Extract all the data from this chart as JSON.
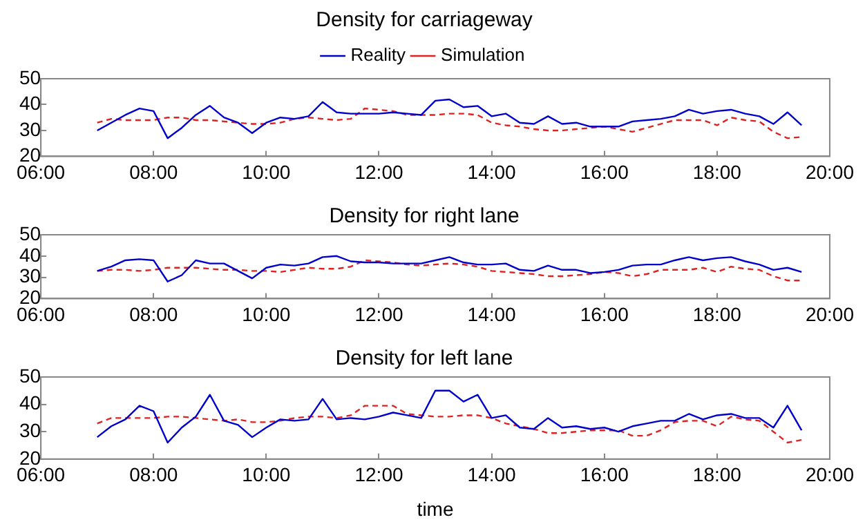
{
  "chart_data": [
    {
      "type": "line",
      "title": "Density for carriageway",
      "legend": "top",
      "grid": false,
      "xlim": [
        6,
        20
      ],
      "ylim": [
        20,
        50
      ],
      "yticks": [
        20,
        30,
        40,
        50
      ],
      "xticks": [
        {
          "value": 6,
          "label": "06:00"
        },
        {
          "value": 8,
          "label": "08:00"
        },
        {
          "value": 10,
          "label": "10:00"
        },
        {
          "value": 12,
          "label": "12:00"
        },
        {
          "value": 14,
          "label": "14:00"
        },
        {
          "value": 16,
          "label": "16:00"
        },
        {
          "value": 18,
          "label": "18:00"
        },
        {
          "value": 20,
          "label": "20:00"
        }
      ],
      "x": [
        7,
        7.25,
        7.5,
        7.75,
        8,
        8.25,
        8.5,
        8.75,
        9,
        9.25,
        9.5,
        9.75,
        10,
        10.25,
        10.5,
        10.75,
        11,
        11.25,
        11.5,
        11.75,
        12,
        12.25,
        12.5,
        12.75,
        13,
        13.25,
        13.5,
        13.75,
        14,
        14.25,
        14.5,
        14.75,
        15,
        15.25,
        15.5,
        15.75,
        16,
        16.25,
        16.5,
        16.75,
        17,
        17.25,
        17.5,
        17.75,
        18,
        18.25,
        18.5,
        18.75,
        19,
        19.25,
        19.5
      ],
      "series": [
        {
          "name": "Reality",
          "color": "#0000cc",
          "line_style": "solid",
          "values": [
            30,
            33,
            36,
            38.5,
            37.5,
            27,
            31,
            36,
            39.5,
            35,
            33,
            29,
            33,
            35,
            34.5,
            35.5,
            41,
            37,
            36.5,
            36.5,
            36.5,
            37,
            36.5,
            36,
            41.5,
            42,
            39,
            39.5,
            35.5,
            36.5,
            33,
            32.5,
            35.5,
            32.5,
            33,
            31.5,
            31.5,
            31.5,
            33.5,
            34,
            34.5,
            35.5,
            38,
            36.5,
            37.5,
            38,
            36.5,
            35.5,
            32.5,
            37,
            32
          ]
        },
        {
          "name": "Simulation",
          "color": "#dd2222",
          "line_style": "dashed",
          "values": [
            33,
            34.5,
            34,
            34,
            34,
            35,
            35,
            34,
            34,
            33.5,
            33,
            32.5,
            32.5,
            33,
            34.5,
            35,
            34.5,
            34,
            34.5,
            38.5,
            38,
            37.5,
            36,
            36,
            36,
            36.5,
            36.5,
            36,
            33,
            32,
            31.5,
            30.5,
            30,
            30,
            30.5,
            31,
            31.5,
            30.5,
            29.5,
            31,
            32.5,
            34,
            34,
            34,
            32,
            35,
            34,
            33.5,
            29.5,
            27,
            27.5
          ]
        }
      ]
    },
    {
      "type": "line",
      "title": "Density for right lane",
      "grid": false,
      "xlim": [
        6,
        20
      ],
      "ylim": [
        20,
        50
      ],
      "yticks": [
        20,
        30,
        40,
        50
      ],
      "xticks": [
        {
          "value": 6,
          "label": "06:00"
        },
        {
          "value": 8,
          "label": "08:00"
        },
        {
          "value": 10,
          "label": "10:00"
        },
        {
          "value": 12,
          "label": "12:00"
        },
        {
          "value": 14,
          "label": "14:00"
        },
        {
          "value": 16,
          "label": "16:00"
        },
        {
          "value": 18,
          "label": "18:00"
        },
        {
          "value": 20,
          "label": "20:00"
        }
      ],
      "x": [
        7,
        7.25,
        7.5,
        7.75,
        8,
        8.25,
        8.5,
        8.75,
        9,
        9.25,
        9.5,
        9.75,
        10,
        10.25,
        10.5,
        10.75,
        11,
        11.25,
        11.5,
        11.75,
        12,
        12.25,
        12.5,
        12.75,
        13,
        13.25,
        13.5,
        13.75,
        14,
        14.25,
        14.5,
        14.75,
        15,
        15.25,
        15.5,
        15.75,
        16,
        16.25,
        16.5,
        16.75,
        17,
        17.25,
        17.5,
        17.75,
        18,
        18.25,
        18.5,
        18.75,
        19,
        19.25,
        19.5
      ],
      "series": [
        {
          "color": "#0000cc",
          "line_style": "solid",
          "values": [
            33,
            35,
            38,
            38.5,
            38,
            28,
            31,
            38,
            36.5,
            36.5,
            33,
            29.5,
            34.5,
            36,
            35.5,
            36.5,
            39.5,
            40,
            37.5,
            37,
            37,
            36.5,
            36.5,
            36.5,
            38,
            39.5,
            37,
            36,
            36,
            36.5,
            33.5,
            33,
            35.5,
            33.5,
            33.5,
            32,
            32.5,
            33.5,
            35.5,
            36,
            36,
            38,
            39.5,
            38,
            39,
            39.5,
            37.5,
            36,
            33.5,
            34.5,
            32.5
          ]
        },
        {
          "color": "#dd2222",
          "line_style": "dashed",
          "values": [
            33,
            33.5,
            33.5,
            33,
            33.5,
            34.5,
            34.5,
            34.5,
            34,
            33.5,
            33.5,
            33,
            33,
            32.5,
            33.5,
            34.5,
            34,
            34,
            35,
            38,
            37.5,
            37,
            36,
            35.5,
            36,
            36.5,
            36,
            35,
            33,
            32.5,
            32,
            31.5,
            30.5,
            30.5,
            31,
            31.5,
            32.5,
            32,
            30.5,
            31.5,
            33.5,
            33.5,
            33.5,
            34.5,
            32.5,
            35,
            34,
            33.5,
            30.5,
            28.5,
            28.5
          ]
        }
      ]
    },
    {
      "type": "line",
      "title": "Density for left lane",
      "xlabel": "time",
      "grid": false,
      "xlim": [
        6,
        20
      ],
      "ylim": [
        20,
        50
      ],
      "yticks": [
        20,
        30,
        40,
        50
      ],
      "xticks": [
        {
          "value": 6,
          "label": "06:00"
        },
        {
          "value": 8,
          "label": "08:00"
        },
        {
          "value": 10,
          "label": "10:00"
        },
        {
          "value": 12,
          "label": "12:00"
        },
        {
          "value": 14,
          "label": "14:00"
        },
        {
          "value": 16,
          "label": "16:00"
        },
        {
          "value": 18,
          "label": "18:00"
        },
        {
          "value": 20,
          "label": "20:00"
        }
      ],
      "x": [
        7,
        7.25,
        7.5,
        7.75,
        8,
        8.25,
        8.5,
        8.75,
        9,
        9.25,
        9.5,
        9.75,
        10,
        10.25,
        10.5,
        10.75,
        11,
        11.25,
        11.5,
        11.75,
        12,
        12.25,
        12.5,
        12.75,
        13,
        13.25,
        13.5,
        13.75,
        14,
        14.25,
        14.5,
        14.75,
        15,
        15.25,
        15.5,
        15.75,
        16,
        16.25,
        16.5,
        16.75,
        17,
        17.25,
        17.5,
        17.75,
        18,
        18.25,
        18.5,
        18.75,
        19,
        19.25,
        19.5
      ],
      "series": [
        {
          "color": "#0000cc",
          "line_style": "solid",
          "values": [
            28,
            32,
            34.5,
            39.5,
            37.5,
            26,
            31.5,
            35.5,
            43.5,
            34,
            32.5,
            28,
            31.5,
            34.5,
            34,
            34.5,
            42,
            34.5,
            35,
            34.5,
            35.5,
            37,
            36,
            35,
            45,
            45,
            41,
            43.5,
            35,
            36,
            31.5,
            31,
            35,
            31.5,
            32,
            31,
            31.5,
            30,
            32,
            33,
            34,
            34,
            36.5,
            34.5,
            36,
            36.5,
            35,
            35,
            31.5,
            39.5,
            30.5
          ]
        },
        {
          "color": "#dd2222",
          "line_style": "dashed",
          "values": [
            33,
            35,
            35,
            35,
            35,
            35.5,
            35.5,
            35,
            34.5,
            34,
            34.5,
            33.5,
            33.5,
            34,
            35,
            35.5,
            35.5,
            35,
            36,
            39.5,
            39.5,
            39.5,
            36.5,
            36,
            35.5,
            35.5,
            36,
            36,
            35,
            33,
            32,
            31,
            29.5,
            29.5,
            30,
            30.5,
            30.5,
            30.5,
            28.5,
            28.5,
            30.5,
            33.5,
            34,
            34,
            32,
            35.5,
            34.5,
            34,
            30,
            26,
            27
          ]
        }
      ]
    }
  ]
}
